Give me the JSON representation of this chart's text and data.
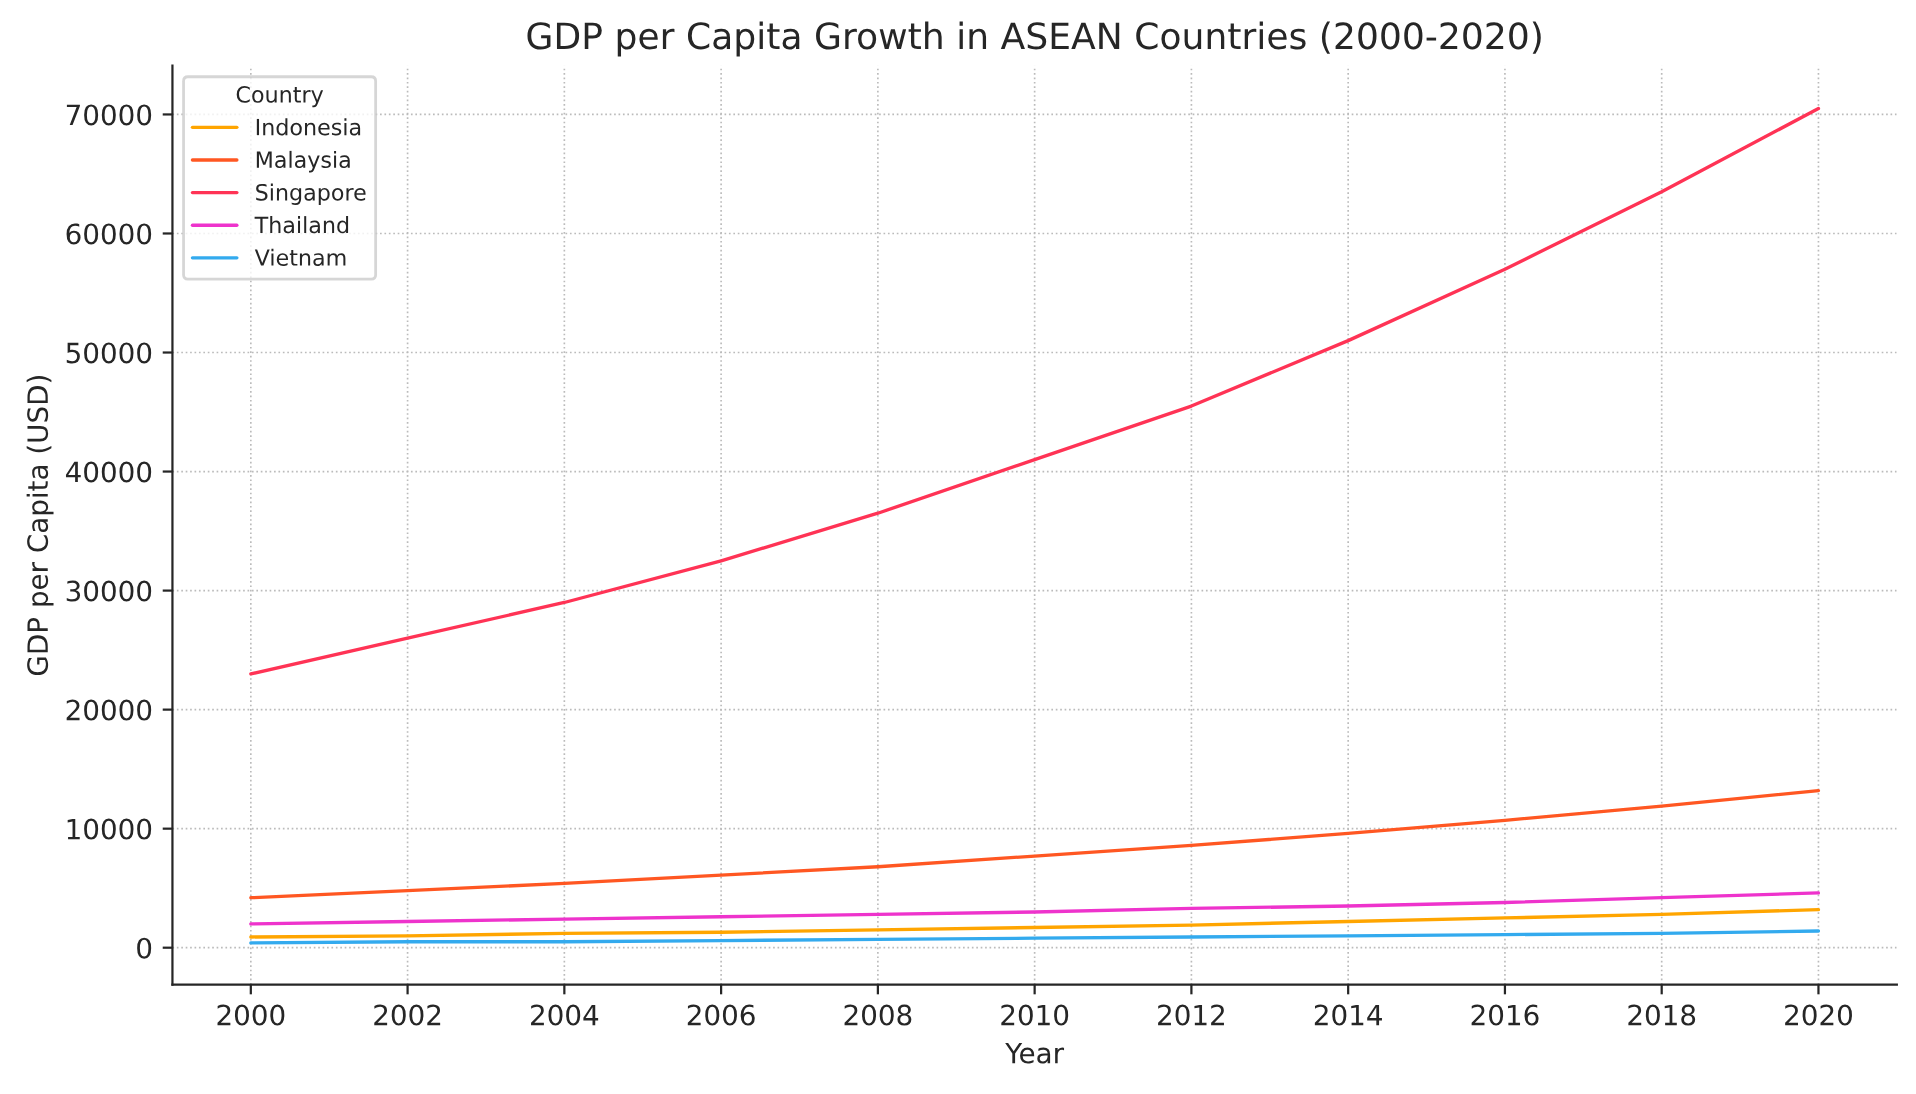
{
  "chart_data": {
    "type": "line",
    "title": "GDP per Capita Growth in ASEAN Countries (2000-2020)",
    "xlabel": "Year",
    "ylabel": "GDP per Capita (USD)",
    "legend_title": "Country",
    "x": [
      2000,
      2002,
      2004,
      2006,
      2008,
      2010,
      2012,
      2014,
      2016,
      2018,
      2020
    ],
    "series": [
      {
        "name": "Indonesia",
        "color": "#ffa500",
        "values": [
          900,
          1000,
          1200,
          1300,
          1500,
          1700,
          1900,
          2200,
          2500,
          2800,
          3200
        ]
      },
      {
        "name": "Malaysia",
        "color": "#ff5722",
        "values": [
          4200,
          4800,
          5400,
          6100,
          6800,
          7700,
          8600,
          9600,
          10700,
          11900,
          13200
        ]
      },
      {
        "name": "Singapore",
        "color": "#ff3355",
        "values": [
          23000,
          26000,
          29000,
          32500,
          36500,
          41000,
          45500,
          51000,
          57000,
          63500,
          70500
        ]
      },
      {
        "name": "Thailand",
        "color": "#ee33cc",
        "values": [
          2000,
          2200,
          2400,
          2600,
          2800,
          3000,
          3300,
          3500,
          3800,
          4200,
          4600
        ]
      },
      {
        "name": "Vietnam",
        "color": "#33aaee",
        "values": [
          400,
          500,
          500,
          600,
          700,
          800,
          900,
          1000,
          1100,
          1200,
          1400
        ]
      }
    ],
    "xlim": [
      1999,
      2021
    ],
    "xticks": [
      2000,
      2002,
      2004,
      2006,
      2008,
      2010,
      2012,
      2014,
      2016,
      2018,
      2020
    ],
    "ylim": [
      -3100,
      74100
    ],
    "yticks": [
      0,
      10000,
      20000,
      30000,
      40000,
      50000,
      60000,
      70000
    ],
    "grid": true,
    "legend": "top left",
    "marker": "none",
    "line_style": "solid"
  }
}
